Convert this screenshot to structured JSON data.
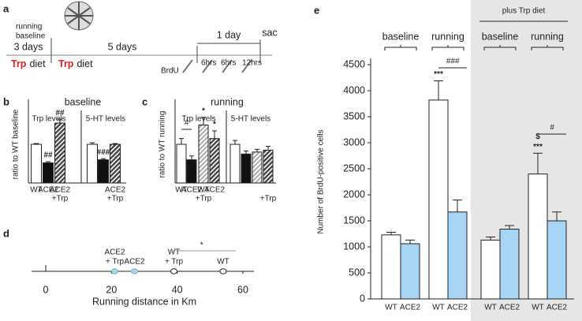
{
  "timeline": {
    "panel": "a",
    "running_label": "running",
    "baseline_label": "baseline",
    "phase1": "3 days",
    "phase2": "5 days",
    "phase3": "1 day",
    "end": "sac",
    "diet_word": "Trp",
    "diet_rest": "diet",
    "injection": "BrdU",
    "intervals": [
      "6hrs",
      "6hrs",
      "12hrs"
    ]
  },
  "chart_data": [
    {
      "type": "bar",
      "panel": "b",
      "title": "baseline",
      "ylabel": "ratio to WT baseline",
      "groups": [
        "Trp levels",
        "5-HT levels"
      ],
      "categories": [
        "WT",
        "ACE2",
        "ACE2",
        null,
        null,
        "ACE2"
      ],
      "sublabels": [
        null,
        null,
        "+Trp",
        null,
        null,
        "+Trp"
      ],
      "values": [
        1.0,
        0.52,
        1.55,
        1.0,
        0.6,
        1.0
      ],
      "errors": [
        0.02,
        0.03,
        0.1,
        0.04,
        0.03,
        0.02
      ],
      "colors": [
        "#ffffff",
        "#111111",
        "#444444",
        "#ffffff",
        "#111111",
        "#444444"
      ],
      "hatch": [
        false,
        false,
        true,
        false,
        false,
        true
      ],
      "annotations": [
        null,
        "##",
        "##",
        null,
        "###",
        null
      ],
      "ylim": [
        0,
        2
      ]
    },
    {
      "type": "bar",
      "panel": "c",
      "title": "running",
      "ylabel": "ratio to WT running",
      "groups": [
        "Trp levels",
        "5-HT levels"
      ],
      "categories": [
        "WT",
        "ACE2",
        "WT",
        "ACE2",
        null,
        null,
        null,
        null
      ],
      "sublabels": [
        null,
        null,
        "+Trp",
        null,
        null,
        null,
        null,
        "+Trp"
      ],
      "values": [
        1.0,
        0.6,
        1.5,
        1.15,
        1.0,
        0.75,
        0.8,
        0.85
      ],
      "errors": [
        0.15,
        0.1,
        0.2,
        0.2,
        0.1,
        0.08,
        0.07,
        0.1
      ],
      "colors": [
        "#ffffff",
        "#111111",
        "#bbbbbb",
        "#444444",
        "#ffffff",
        "#111111",
        "#bbbbbb",
        "#444444"
      ],
      "hatch": [
        false,
        false,
        true,
        true,
        false,
        false,
        true,
        true
      ],
      "annotations": [
        null,
        null,
        "*",
        "*",
        null,
        null,
        null,
        null
      ],
      "brackets": [
        "#"
      ],
      "ylim": [
        0,
        2
      ]
    },
    {
      "type": "scatter",
      "panel": "d",
      "xlabel": "Running distance in Km",
      "xlim": [
        0,
        60
      ],
      "xticks": [
        0,
        20,
        40,
        60
      ],
      "categories": [
        "ACE2",
        "ACE2",
        "WT",
        "WT"
      ],
      "sublabels": [
        "+ Trp",
        null,
        "+ Trp",
        null
      ],
      "x": [
        21,
        27,
        39,
        54
      ],
      "colors": [
        "#a8d8ea",
        "#a8d8ea",
        "#ffffff",
        "#ffffff"
      ],
      "significance": "*"
    },
    {
      "type": "bar",
      "panel": "e",
      "ylabel": "Number of BrdU-positive cells",
      "ylim": [
        0,
        4500
      ],
      "yticks": [
        0,
        500,
        1000,
        1500,
        2000,
        2500,
        3000,
        3500,
        4000,
        4500
      ],
      "categories": [
        "WT",
        "ACE2",
        "WT",
        "ACE2",
        "WT",
        "ACE2",
        "WT",
        "ACE2"
      ],
      "values": [
        1230,
        1060,
        3820,
        1670,
        1130,
        1340,
        2400,
        1500
      ],
      "errors": [
        50,
        70,
        370,
        230,
        60,
        70,
        400,
        170
      ],
      "colors": [
        "#ffffff",
        "#a8d4f5",
        "#ffffff",
        "#a8d4f5",
        "#ffffff",
        "#a8d4f5",
        "#ffffff",
        "#a8d4f5"
      ],
      "groups": [
        "baseline",
        "running",
        "baseline",
        "running"
      ],
      "supergroup": "plus Trp diet",
      "annotations": [
        null,
        null,
        "***",
        null,
        null,
        null,
        "***",
        null
      ],
      "annotations_upper": [
        null,
        null,
        null,
        null,
        null,
        null,
        "$",
        null
      ],
      "brackets": [
        "###",
        "#"
      ]
    }
  ]
}
